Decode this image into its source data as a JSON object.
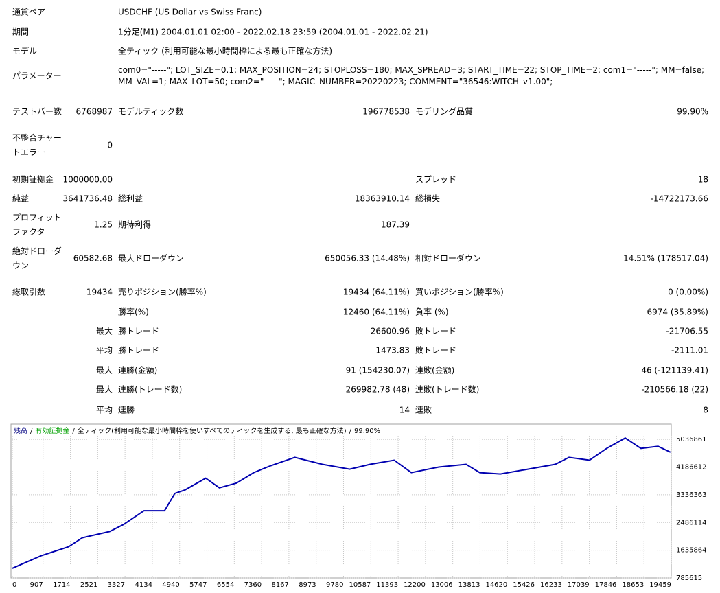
{
  "report": {
    "rows": [
      [
        "通貨ペア",
        null,
        "USDCHF (US Dollar vs Swiss Franc)"
      ],
      [
        "期間",
        null,
        "1分足(M1) 2004.01.01 02:00 - 2022.02.18 23:59 (2004.01.01 - 2022.02.21)"
      ],
      [
        "モデル",
        null,
        "全ティック (利用可能な最小時間枠による最も正確な方法)"
      ],
      [
        "パラメーター",
        null,
        "com0=\"-----\"; LOT_SIZE=0.1; MAX_POSITION=24; STOPLOSS=180; MAX_SPREAD=3; START_TIME=22; STOP_TIME=2; com1=\"-----\"; MM=false; MM_VAL=1; MAX_LOT=50; com2=\"-----\"; MAGIC_NUMBER=20220223; COMMENT=\"36546:WITCH_v1.00\";"
      ],
      [
        "テストバー数",
        "6768987",
        "モデルティック数",
        "196778538",
        "モデリング品質",
        "99.90%"
      ],
      [
        "不整合チャートエラー",
        "0"
      ],
      [
        "初期証拠金",
        "1000000.00",
        null,
        null,
        "スプレッド",
        "18"
      ],
      [
        "純益",
        "3641736.48",
        "総利益",
        "18363910.14",
        "総損失",
        "-14722173.66"
      ],
      [
        "プロフィットファクタ",
        "1.25",
        "期待利得",
        "187.39"
      ],
      [
        "絶対ドローダウン",
        "60582.68",
        "最大ドローダウン",
        "650056.33 (14.48%)",
        "相対ドローダウン",
        "14.51% (178517.04)"
      ],
      [
        "総取引数",
        "19434",
        "売りポジション(勝率%)",
        "19434 (64.11%)",
        "買いポジション(勝率%)",
        "0 (0.00%)"
      ],
      [
        null,
        null,
        "勝率(%)",
        "12460 (64.11%)",
        "負率 (%)",
        "6974 (35.89%)"
      ],
      [
        null,
        "最大",
        "勝トレード",
        "26600.96",
        "敗トレード",
        "-21706.55"
      ],
      [
        null,
        "平均",
        "勝トレード",
        "1473.83",
        "敗トレード",
        "-2111.01"
      ],
      [
        null,
        "最大",
        "連勝(金額)",
        "91 (154230.07)",
        "連敗(金額)",
        "46 (-121139.41)"
      ],
      [
        null,
        "最大",
        "連勝(トレード数)",
        "269982.78 (48)",
        "連敗(トレード数)",
        "-210566.18 (22)"
      ],
      [
        null,
        "平均",
        "連勝",
        "14",
        "連敗",
        "8"
      ]
    ]
  },
  "chart_data": {
    "type": "line",
    "header": [
      {
        "text": "残高",
        "color": "#000080"
      },
      {
        "text": "/",
        "color": "#000000"
      },
      {
        "text": "有効証拠金",
        "color": "#00a000"
      },
      {
        "text": "/",
        "color": "#000000"
      },
      {
        "text": "全ティック(利用可能な最小時間枠を使いすべてのティックを生成する, 最も正確な方法)",
        "color": "#000000"
      },
      {
        "text": "/",
        "color": "#000000"
      },
      {
        "text": "99.90%",
        "color": "#000000"
      }
    ],
    "grid": true,
    "xlim": [
      0,
      19459
    ],
    "ylim": [
      785615,
      5462000
    ],
    "xticks": [
      0,
      907,
      1714,
      2521,
      3327,
      4134,
      4940,
      5747,
      6554,
      7360,
      8167,
      8973,
      9780,
      10587,
      11393,
      12200,
      13006,
      13813,
      14620,
      15426,
      16233,
      17039,
      17846,
      18653,
      19459
    ],
    "yticks": [
      785615,
      1635864,
      2486114,
      3336363,
      4186612,
      5036861
    ],
    "series": [
      {
        "name": "残高",
        "color": "#0000b0",
        "x": [
          0,
          850,
          1660,
          2065,
          2875,
          3280,
          3887,
          4494,
          4798,
          5101,
          5709,
          6114,
          6620,
          7126,
          7632,
          8341,
          9151,
          9961,
          10567,
          11276,
          11782,
          12592,
          13401,
          13806,
          14414,
          15223,
          16033,
          16438,
          17045,
          17551,
          18098,
          18563,
          19070,
          19434
        ],
        "values": [
          1083200,
          1465800,
          1742100,
          2018500,
          2209800,
          2422300,
          2847500,
          2847500,
          3378900,
          3485100,
          3846500,
          3549000,
          3697700,
          4016500,
          4229100,
          4484200,
          4271600,
          4122800,
          4271600,
          4399100,
          4016500,
          4186600,
          4271600,
          4016500,
          3974000,
          4122800,
          4271600,
          4484200,
          4399100,
          4760500,
          5079300,
          4760500,
          4824300,
          4641736
        ]
      }
    ]
  }
}
